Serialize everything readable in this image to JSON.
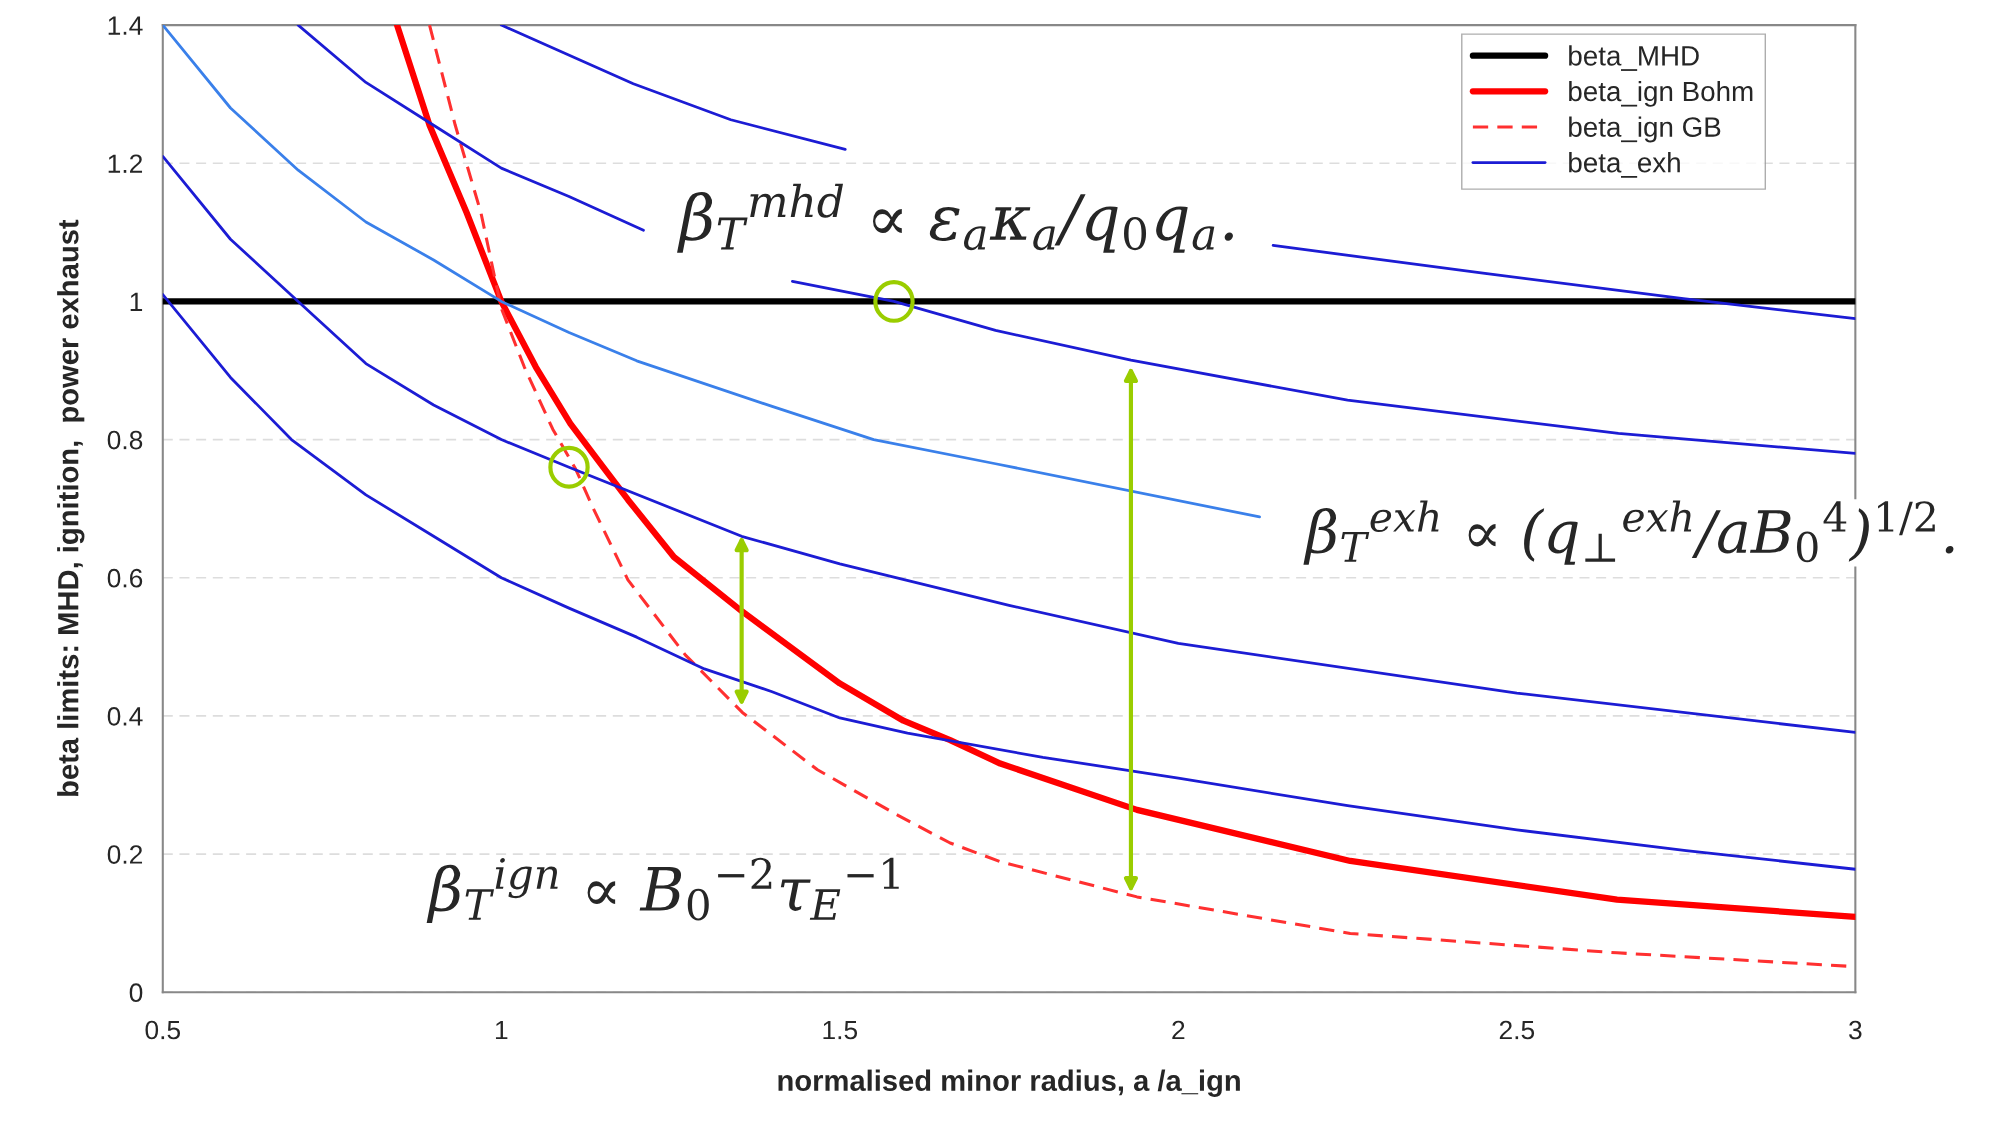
{
  "chart_data": {
    "type": "line",
    "xlabel": "normalised minor radius, a /a_ign",
    "ylabel": "beta limits: MHD, ignition,  power exhaust",
    "xlim": [
      0.5,
      3
    ],
    "ylim": [
      0,
      1.4
    ],
    "xticks": [
      0.5,
      1,
      1.5,
      2,
      2.5,
      3
    ],
    "yticks": [
      0,
      0.2,
      0.4,
      0.6,
      0.8,
      1,
      1.2,
      1.4
    ],
    "grid": "y",
    "legend": "top right",
    "marker": "none",
    "annotations": [
      "β$_{T}$$^{mhd}$ ∝ ε$_{a}$κ$_{a}$/q$_{0}$q$_{a}$.",
      "β$_{T}$$^{exh}$ ∝ (q$_{⊥}$$^{exh}$/aB$_{0}$$^{4}$)$^{1/2}$.",
      "β$_{T}$$^{ign}$ ∝ B$_{0}$$^{−2}$τ$_{E}$$^{−1}$"
    ],
    "series": [
      {
        "name": "beta_MHD",
        "color": "#000000",
        "line_style": "solid",
        "x": [
          0.5,
          3
        ],
        "values": [
          1,
          1
        ]
      },
      {
        "name": "beta_ign Bohm",
        "color": "#ff0000",
        "line_style": "solid",
        "x": [
          0.846,
          0.894,
          0.949,
          1.0,
          1.051,
          1.102,
          1.153,
          1.187,
          1.255,
          1.356,
          1.5,
          1.594,
          1.663,
          1.737,
          1.939,
          2.254,
          2.648,
          3.0
        ],
        "values": [
          1.4,
          1.255,
          1.128,
          1.0,
          0.905,
          0.823,
          0.757,
          0.713,
          0.63,
          0.551,
          0.447,
          0.393,
          0.365,
          0.331,
          0.264,
          0.19,
          0.134,
          0.109
        ]
      },
      {
        "name": "beta_ign GB",
        "color": "#ff3030",
        "line_style": "dashed",
        "x": [
          0.894,
          0.932,
          0.97,
          1.0,
          1.034,
          1.076,
          1.11,
          1.136,
          1.187,
          1.272,
          1.356,
          1.467,
          1.586,
          1.663,
          1.737,
          1.939,
          2.254,
          2.648,
          3.0
        ],
        "values": [
          1.4,
          1.255,
          1.128,
          0.99,
          0.905,
          0.815,
          0.757,
          0.7,
          0.597,
          0.488,
          0.405,
          0.322,
          0.256,
          0.216,
          0.189,
          0.138,
          0.085,
          0.057,
          0.037
        ]
      },
      {
        "name": "beta_exh",
        "color": "#1c1cd4",
        "line_style": "solid",
        "x": [
          0.5,
          0.6,
          0.69,
          0.8,
          0.9,
          1.0,
          1.1,
          1.2,
          1.3,
          1.4,
          1.5,
          1.6,
          1.8,
          2.0,
          2.25,
          2.5,
          2.75,
          3.0
        ],
        "values": [
          1.01,
          0.89,
          0.8,
          0.72,
          0.66,
          0.6,
          0.556,
          0.514,
          0.468,
          0.435,
          0.397,
          0.375,
          0.34,
          0.31,
          0.27,
          0.235,
          0.205,
          0.178
        ]
      },
      {
        "color": "#1c1cd4",
        "line_style": "solid",
        "x": [
          0.5,
          0.6,
          0.7,
          0.8,
          0.9,
          1.0,
          1.1,
          1.355,
          1.5,
          1.75,
          2.0,
          2.5,
          3.0
        ],
        "values": [
          1.21,
          1.09,
          1.0,
          0.91,
          0.85,
          0.8,
          0.76,
          0.66,
          0.62,
          0.56,
          0.505,
          0.433,
          0.376
        ]
      },
      {
        "color": "#3a80ea",
        "line_style": "solid",
        "x": [
          0.5,
          0.6,
          0.7,
          0.8,
          0.9,
          1.0,
          1.1,
          1.2,
          1.4,
          1.55,
          1.73,
          2.12
        ],
        "values": [
          1.4,
          1.28,
          1.19,
          1.115,
          1.06,
          1.0,
          0.955,
          0.914,
          0.848,
          0.8,
          0.765,
          0.688
        ]
      },
      {
        "color": "#1c1cd4",
        "line_style": "solid",
        "x": [
          0.7,
          0.8,
          0.9,
          1.0,
          1.1,
          1.21,
          1.32,
          1.43,
          1.58,
          1.73,
          1.93,
          2.25,
          2.65,
          3.0
        ],
        "values": [
          1.4,
          1.317,
          1.255,
          1.193,
          1.152,
          1.103,
          null,
          1.029,
          1.0,
          0.958,
          0.915,
          0.857,
          0.809,
          0.78
        ]
      },
      {
        "color": "#1c1cd4",
        "line_style": "solid",
        "x": [
          1.0,
          1.195,
          1.339,
          1.508,
          1.8,
          2.14,
          2.45,
          2.746,
          3.0
        ],
        "values": [
          1.4,
          1.315,
          1.263,
          1.22,
          null,
          1.081,
          1.041,
          1.004,
          0.975
        ]
      }
    ]
  }
}
